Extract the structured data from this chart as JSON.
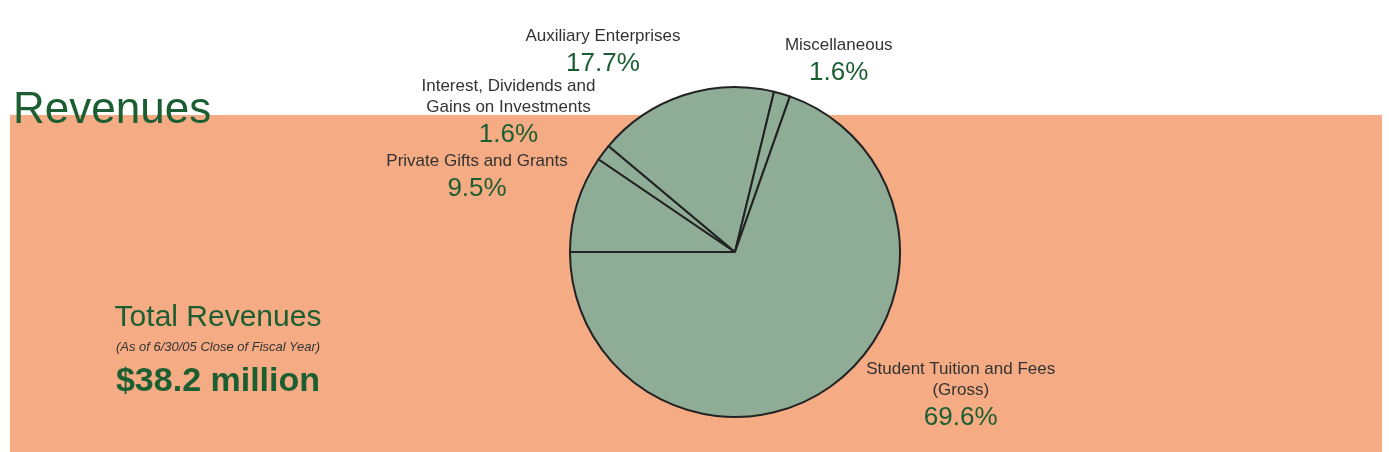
{
  "chart_data": {
    "type": "pie",
    "title": "Revenues",
    "categories": [
      "Private Gifts and Grants",
      "Interest, Dividends and Gains on Investments",
      "Auxiliary Enterprises",
      "Miscellaneous",
      "Student Tuition and Fees (Gross)"
    ],
    "values": [
      9.5,
      1.6,
      17.7,
      1.6,
      69.6
    ],
    "value_labels": [
      "9.5%",
      "1.6%",
      "17.7%",
      "1.6%",
      "69.6%"
    ],
    "colors": [
      "#8fac96",
      "#8fac96",
      "#8fac96",
      "#8fac96",
      "#8fac96"
    ],
    "annotations": [
      "Total Revenues",
      "(As of 6/30/05 Close of Fiscal Year)",
      "$38.2 million"
    ]
  }
}
